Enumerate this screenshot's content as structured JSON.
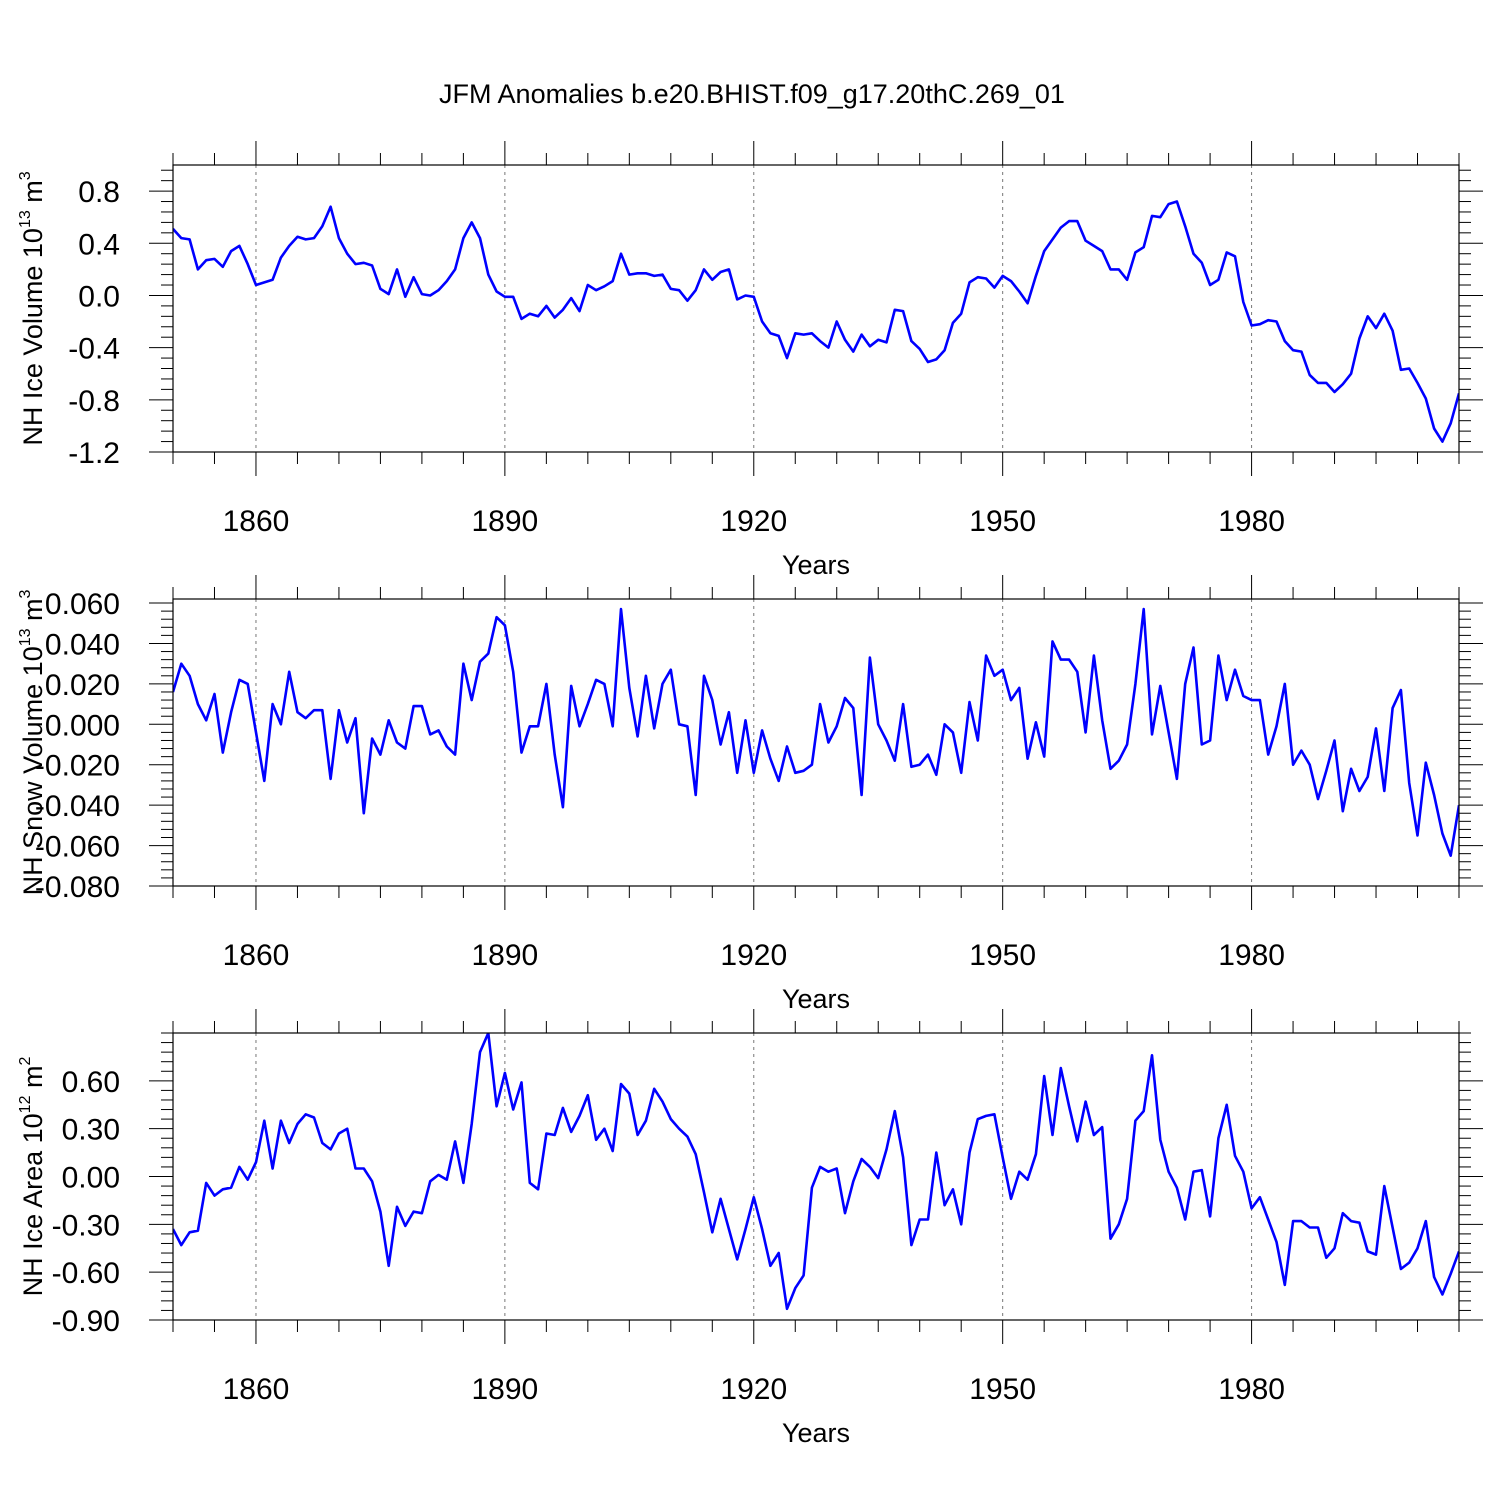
{
  "title": "JFM Anomalies b.e20.BHIST.f09_g17.20thC.269_01",
  "colors": {
    "series": "#0000ff",
    "axis": "#000000",
    "grid": "#777777"
  },
  "chart_data": [
    {
      "type": "line",
      "panel": "top",
      "ylabel": {
        "main": "NH Ice Volume 10",
        "sup": "13",
        "unit": " m",
        "unit_sup": "3"
      },
      "xlabel": "Years",
      "xlim": [
        1850,
        2005
      ],
      "ylim": [
        -1.2,
        1.0
      ],
      "xticks": [
        1860,
        1890,
        1920,
        1950,
        1980
      ],
      "xtick_labels": [
        "1860",
        "1890",
        "1920",
        "1950",
        "1980"
      ],
      "yticks": [
        -1.2,
        -0.8,
        -0.4,
        0.0,
        0.4,
        0.8
      ],
      "ytick_labels": [
        "-1.2",
        "-0.8",
        "-0.4",
        "0.0",
        "0.4",
        "0.8"
      ],
      "grid": "vertical dashed at major x ticks",
      "series": [
        {
          "name": "NH Ice Volume",
          "x_start": 1850,
          "x_step": 1,
          "values": [
            0.51,
            0.44,
            0.43,
            0.2,
            0.27,
            0.28,
            0.22,
            0.34,
            0.38,
            0.24,
            0.08,
            0.1,
            0.12,
            0.29,
            0.38,
            0.45,
            0.43,
            0.44,
            0.53,
            0.68,
            0.44,
            0.32,
            0.24,
            0.25,
            0.23,
            0.05,
            0.01,
            0.2,
            -0.01,
            0.14,
            0.01,
            0.0,
            0.04,
            0.11,
            0.2,
            0.44,
            0.56,
            0.44,
            0.16,
            0.03,
            -0.01,
            -0.01,
            -0.18,
            -0.14,
            -0.16,
            -0.08,
            -0.17,
            -0.11,
            -0.02,
            -0.12,
            0.08,
            0.04,
            0.07,
            0.11,
            0.32,
            0.16,
            0.17,
            0.17,
            0.15,
            0.16,
            0.05,
            0.04,
            -0.04,
            0.04,
            0.2,
            0.12,
            0.18,
            0.2,
            -0.03,
            0.0,
            -0.01,
            -0.2,
            -0.29,
            -0.31,
            -0.48,
            -0.29,
            -0.3,
            -0.29,
            -0.35,
            -0.4,
            -0.2,
            -0.34,
            -0.43,
            -0.3,
            -0.39,
            -0.34,
            -0.36,
            -0.11,
            -0.12,
            -0.35,
            -0.41,
            -0.51,
            -0.49,
            -0.42,
            -0.21,
            -0.14,
            0.1,
            0.14,
            0.13,
            0.06,
            0.15,
            0.11,
            0.03,
            -0.06,
            0.15,
            0.34,
            0.43,
            0.52,
            0.57,
            0.57,
            0.42,
            0.38,
            0.34,
            0.2,
            0.2,
            0.12,
            0.33,
            0.37,
            0.61,
            0.6,
            0.7,
            0.72,
            0.53,
            0.32,
            0.25,
            0.08,
            0.12,
            0.33,
            0.3,
            -0.05,
            -0.23,
            -0.22,
            -0.19,
            -0.2,
            -0.35,
            -0.42,
            -0.43,
            -0.61,
            -0.67,
            -0.67,
            -0.74,
            -0.68,
            -0.6,
            -0.33,
            -0.16,
            -0.25,
            -0.14,
            -0.27,
            -0.57,
            -0.56,
            -0.67,
            -0.79,
            -1.02,
            -1.12,
            -0.98,
            -0.75
          ]
        }
      ]
    },
    {
      "type": "line",
      "panel": "middle",
      "ylabel": {
        "main": "NH Snow Volume 10",
        "sup": "13",
        "unit": " m",
        "unit_sup": "3"
      },
      "xlabel": "Years",
      "xlim": [
        1850,
        2005
      ],
      "ylim": [
        -0.08,
        0.062
      ],
      "xticks": [
        1860,
        1890,
        1920,
        1950,
        1980
      ],
      "xtick_labels": [
        "1860",
        "1890",
        "1920",
        "1950",
        "1980"
      ],
      "yticks": [
        -0.08,
        -0.06,
        -0.04,
        -0.02,
        0.0,
        0.02,
        0.04,
        0.06
      ],
      "ytick_labels": [
        "-0.080",
        "-0.060",
        "-0.040",
        "-0.020",
        "0.000",
        "0.020",
        "0.040",
        "0.060"
      ],
      "grid": "vertical dashed at major x ticks",
      "series": [
        {
          "name": "NH Snow Volume",
          "x_start": 1850,
          "x_step": 1,
          "values": [
            0.016,
            0.03,
            0.024,
            0.01,
            0.002,
            0.015,
            -0.014,
            0.006,
            0.022,
            0.02,
            -0.004,
            -0.028,
            0.01,
            0.0,
            0.026,
            0.006,
            0.003,
            0.007,
            0.007,
            -0.027,
            0.007,
            -0.009,
            0.003,
            -0.044,
            -0.007,
            -0.015,
            0.002,
            -0.009,
            -0.012,
            0.009,
            0.009,
            -0.005,
            -0.003,
            -0.011,
            -0.015,
            0.03,
            0.012,
            0.031,
            0.035,
            0.053,
            0.049,
            0.026,
            -0.014,
            -0.001,
            -0.001,
            0.02,
            -0.015,
            -0.041,
            0.019,
            -0.001,
            0.01,
            0.022,
            0.02,
            -0.001,
            0.057,
            0.018,
            -0.006,
            0.024,
            -0.002,
            0.02,
            0.027,
            0.0,
            -0.001,
            -0.035,
            0.024,
            0.012,
            -0.01,
            0.006,
            -0.024,
            0.002,
            -0.024,
            -0.003,
            -0.017,
            -0.028,
            -0.011,
            -0.024,
            -0.023,
            -0.02,
            0.01,
            -0.009,
            -0.001,
            0.013,
            0.008,
            -0.035,
            0.033,
            0.0,
            -0.008,
            -0.018,
            0.01,
            -0.021,
            -0.02,
            -0.015,
            -0.025,
            0.0,
            -0.004,
            -0.024,
            0.011,
            -0.008,
            0.034,
            0.024,
            0.027,
            0.012,
            0.018,
            -0.017,
            0.001,
            -0.016,
            0.041,
            0.032,
            0.032,
            0.026,
            -0.004,
            0.034,
            0.002,
            -0.022,
            -0.018,
            -0.01,
            0.02,
            0.057,
            -0.005,
            0.019,
            -0.004,
            -0.027,
            0.02,
            0.038,
            -0.01,
            -0.008,
            0.034,
            0.012,
            0.027,
            0.014,
            0.012,
            0.012,
            -0.015,
            -0.001,
            0.02,
            -0.02,
            -0.013,
            -0.02,
            -0.037,
            -0.023,
            -0.008,
            -0.043,
            -0.022,
            -0.033,
            -0.026,
            -0.002,
            -0.033,
            0.008,
            0.017,
            -0.029,
            -0.055,
            -0.019,
            -0.035,
            -0.054,
            -0.065,
            -0.04
          ]
        }
      ]
    },
    {
      "type": "line",
      "panel": "bottom",
      "ylabel": {
        "main": "NH Ice Area 10",
        "sup": "12",
        "unit": " m",
        "unit_sup": "2"
      },
      "xlabel": "Years",
      "xlim": [
        1850,
        2005
      ],
      "ylim": [
        -0.9,
        0.9
      ],
      "xticks": [
        1860,
        1890,
        1920,
        1950,
        1980
      ],
      "xtick_labels": [
        "1860",
        "1890",
        "1920",
        "1950",
        "1980"
      ],
      "yticks": [
        -0.9,
        -0.6,
        -0.3,
        0.0,
        0.3,
        0.6
      ],
      "ytick_labels": [
        "-0.90",
        "-0.60",
        "-0.30",
        "0.00",
        "0.30",
        "0.60"
      ],
      "grid": "vertical dashed at major x ticks",
      "series": [
        {
          "name": "NH Ice Area",
          "x_start": 1850,
          "x_step": 1,
          "values": [
            -0.33,
            -0.43,
            -0.35,
            -0.34,
            -0.04,
            -0.12,
            -0.08,
            -0.07,
            0.06,
            -0.02,
            0.09,
            0.35,
            0.05,
            0.35,
            0.21,
            0.33,
            0.39,
            0.37,
            0.21,
            0.17,
            0.27,
            0.3,
            0.05,
            0.05,
            -0.03,
            -0.22,
            -0.56,
            -0.19,
            -0.31,
            -0.22,
            -0.23,
            -0.03,
            0.01,
            -0.02,
            0.22,
            -0.04,
            0.33,
            0.78,
            0.9,
            0.44,
            0.65,
            0.42,
            0.59,
            -0.04,
            -0.08,
            0.27,
            0.26,
            0.43,
            0.28,
            0.38,
            0.51,
            0.23,
            0.3,
            0.16,
            0.58,
            0.52,
            0.26,
            0.35,
            0.55,
            0.47,
            0.36,
            0.3,
            0.25,
            0.14,
            -0.1,
            -0.35,
            -0.14,
            -0.33,
            -0.52,
            -0.33,
            -0.13,
            -0.33,
            -0.56,
            -0.48,
            -0.83,
            -0.7,
            -0.62,
            -0.07,
            0.06,
            0.03,
            0.05,
            -0.23,
            -0.03,
            0.11,
            0.06,
            -0.01,
            0.17,
            0.41,
            0.12,
            -0.43,
            -0.27,
            -0.27,
            0.15,
            -0.18,
            -0.08,
            -0.3,
            0.15,
            0.36,
            0.38,
            0.39,
            0.12,
            -0.14,
            0.03,
            -0.02,
            0.14,
            0.63,
            0.26,
            0.68,
            0.44,
            0.22,
            0.47,
            0.26,
            0.31,
            -0.39,
            -0.3,
            -0.14,
            0.35,
            0.41,
            0.76,
            0.23,
            0.03,
            -0.07,
            -0.27,
            0.03,
            0.04,
            -0.25,
            0.24,
            0.45,
            0.13,
            0.03,
            -0.2,
            -0.13,
            -0.27,
            -0.41,
            -0.68,
            -0.28,
            -0.28,
            -0.32,
            -0.32,
            -0.51,
            -0.45,
            -0.23,
            -0.28,
            -0.29,
            -0.47,
            -0.49,
            -0.06,
            -0.32,
            -0.58,
            -0.54,
            -0.45,
            -0.28,
            -0.63,
            -0.74,
            -0.61,
            -0.47
          ]
        }
      ]
    }
  ]
}
